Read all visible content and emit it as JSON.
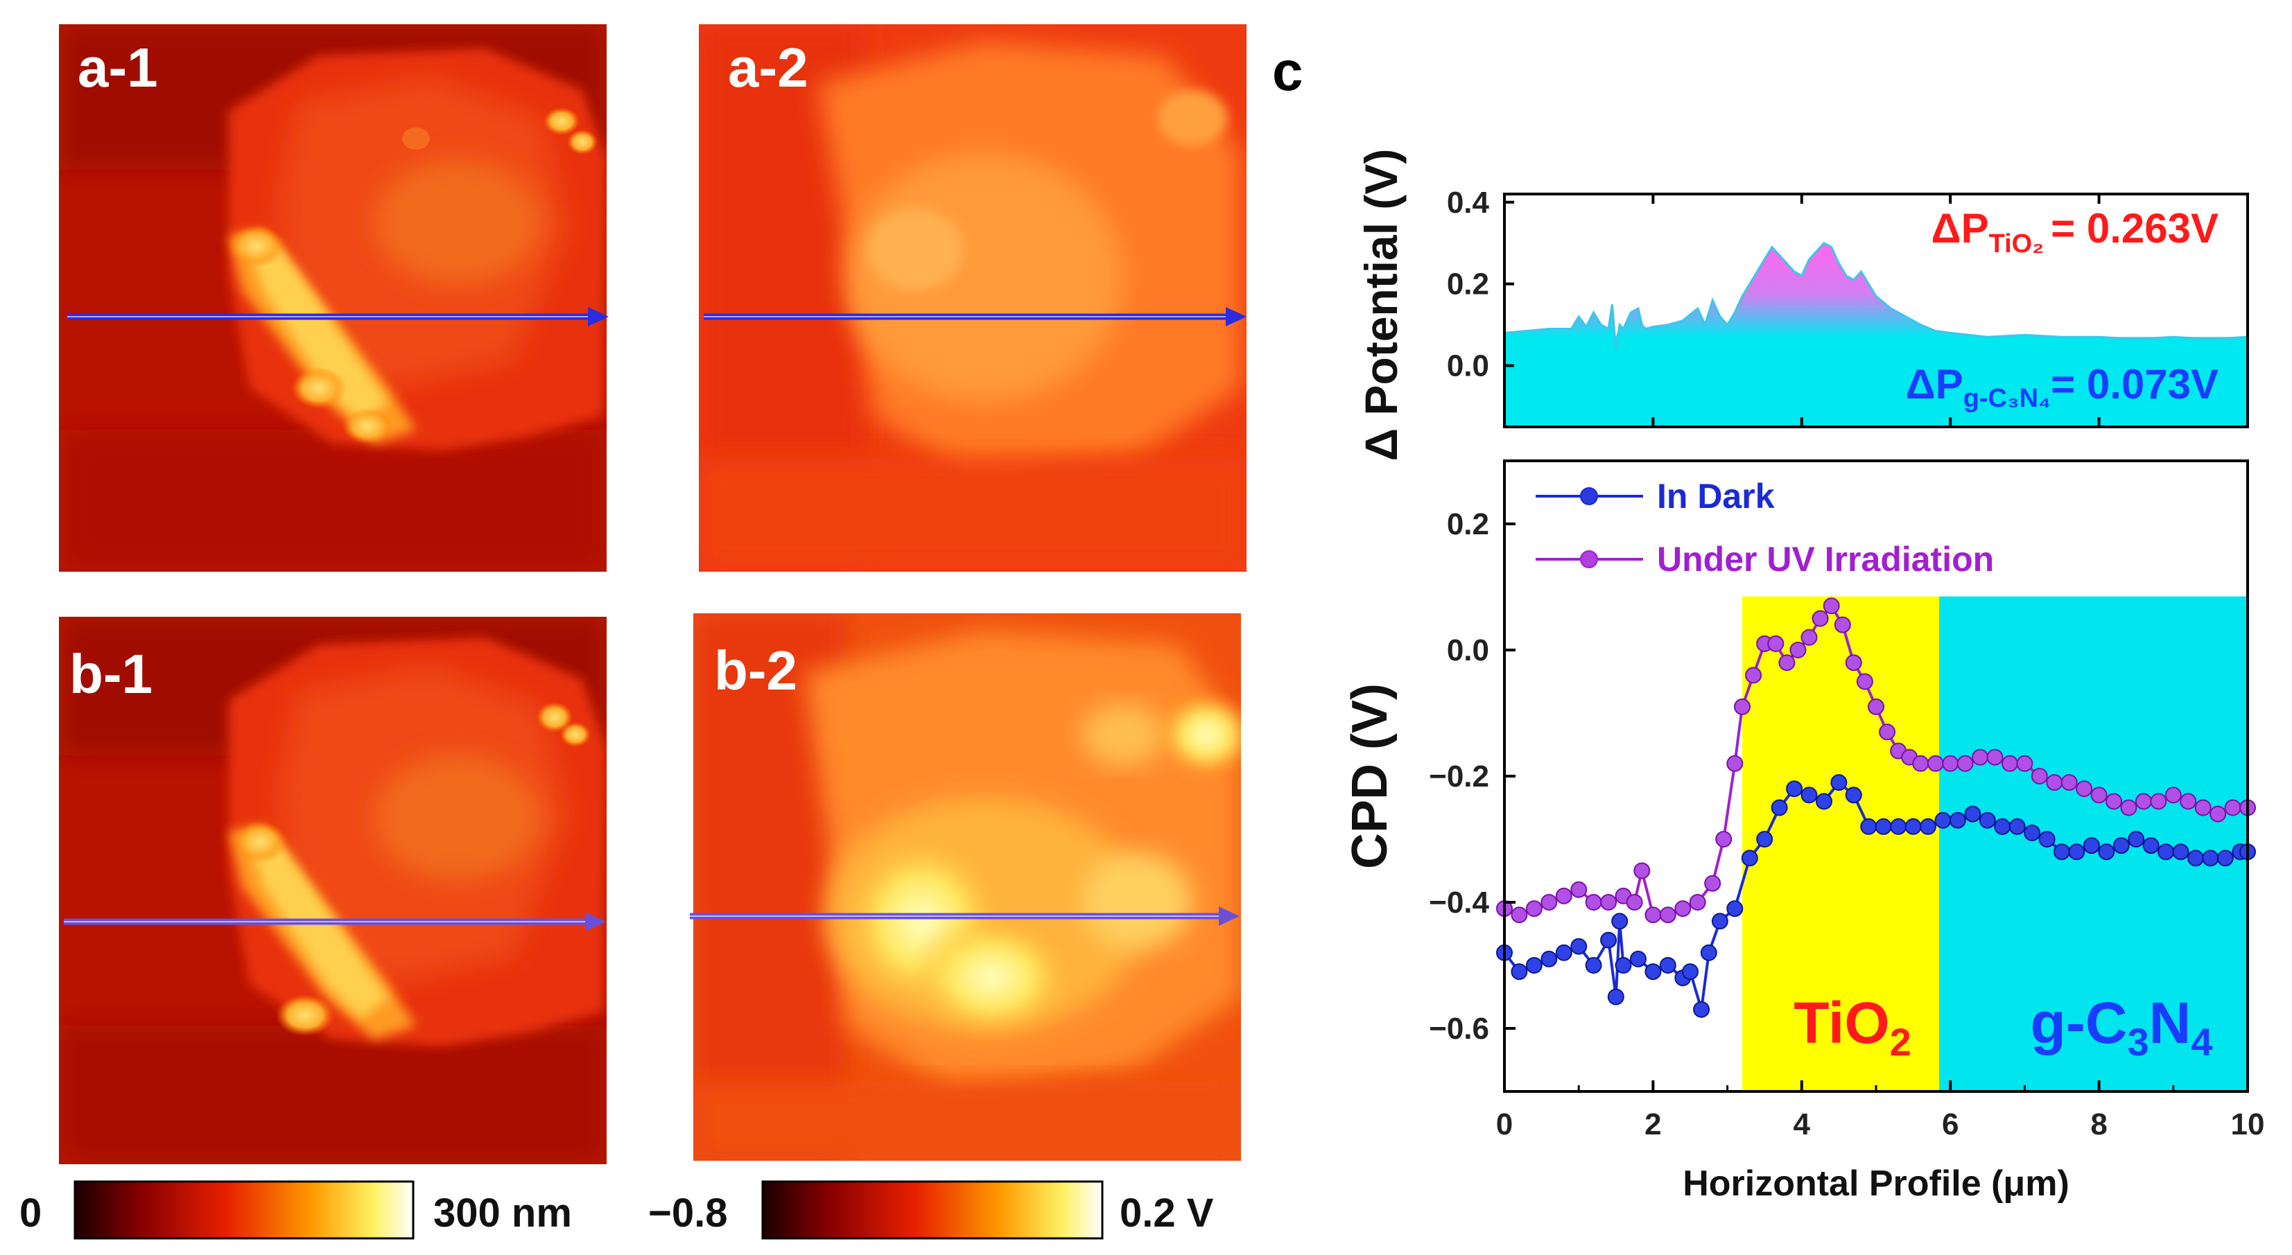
{
  "panels": {
    "a1": "a-1",
    "a2": "a-2",
    "b1": "b-1",
    "b2": "b-2",
    "c": "c"
  },
  "colorbars": {
    "height": {
      "min_label": "0",
      "max_label": "300 nm"
    },
    "potential": {
      "min_label": "−0.8",
      "max_label": "0.2 V"
    }
  },
  "chart_data": [
    {
      "type": "area",
      "title": "",
      "xlabel": "",
      "ylabel": "Δ Potential (V)",
      "xlim": [
        0,
        10
      ],
      "ylim": [
        -0.15,
        0.42
      ],
      "yticks": [
        "0.4",
        "0.2",
        "0.0"
      ],
      "annotations": {
        "tio2": {
          "prefix": "ΔP",
          "sub": "TiO₂",
          "value": "= 0.263V"
        },
        "gcn": {
          "prefix": "ΔP",
          "sub": "g-C₃N₄",
          "value": "= 0.073V"
        }
      },
      "x": [
        0,
        0.3,
        0.6,
        0.9,
        1.0,
        1.1,
        1.2,
        1.3,
        1.4,
        1.45,
        1.5,
        1.55,
        1.6,
        1.7,
        1.8,
        1.85,
        1.9,
        2.0,
        2.2,
        2.4,
        2.6,
        2.7,
        2.8,
        2.9,
        3.0,
        3.1,
        3.2,
        3.3,
        3.4,
        3.5,
        3.6,
        3.7,
        3.8,
        3.9,
        4.0,
        4.1,
        4.2,
        4.3,
        4.4,
        4.5,
        4.6,
        4.7,
        4.8,
        4.9,
        5.0,
        5.2,
        5.4,
        5.6,
        5.8,
        6.0,
        6.5,
        7.0,
        7.5,
        8.0,
        8.5,
        9.0,
        9.5,
        10.0
      ],
      "values": [
        0.08,
        0.085,
        0.09,
        0.09,
        0.12,
        0.095,
        0.13,
        0.1,
        0.09,
        0.15,
        0.04,
        0.1,
        0.09,
        0.13,
        0.14,
        0.1,
        0.09,
        0.095,
        0.1,
        0.11,
        0.14,
        0.1,
        0.16,
        0.12,
        0.1,
        0.13,
        0.17,
        0.2,
        0.23,
        0.26,
        0.29,
        0.27,
        0.25,
        0.23,
        0.22,
        0.26,
        0.28,
        0.3,
        0.29,
        0.25,
        0.22,
        0.21,
        0.23,
        0.2,
        0.17,
        0.14,
        0.12,
        0.1,
        0.085,
        0.08,
        0.07,
        0.075,
        0.07,
        0.07,
        0.065,
        0.07,
        0.065,
        0.07
      ]
    },
    {
      "type": "line",
      "title": "",
      "xlabel": "Horizontal Profile (μm)",
      "ylabel": "CPD (V)",
      "xlim": [
        0,
        10
      ],
      "ylim": [
        -0.7,
        0.3
      ],
      "xticks": [
        "0",
        "2",
        "4",
        "6",
        "8",
        "10"
      ],
      "yticks": [
        "0.2",
        "0.0",
        "−0.2",
        "−0.4",
        "−0.6"
      ],
      "regions": [
        {
          "name": "TiO2",
          "label_main": "TiO",
          "label_sub": "2",
          "x_from": 3.2,
          "x_to": 5.85,
          "color": "#ffff00",
          "label_color": "#ff1a1a"
        },
        {
          "name": "g-C3N4",
          "label_main": "g-C",
          "label_sub1": "3",
          "label_mid": "N",
          "label_sub2": "4",
          "x_from": 5.85,
          "x_to": 10,
          "color": "#00e5ee",
          "label_color": "#1a3cff"
        }
      ],
      "series": [
        {
          "name": "In Dark",
          "color": "#1a2ad6",
          "x": [
            0,
            0.2,
            0.4,
            0.6,
            0.8,
            1.0,
            1.2,
            1.4,
            1.5,
            1.55,
            1.6,
            1.8,
            2.0,
            2.2,
            2.4,
            2.5,
            2.65,
            2.75,
            2.9,
            3.1,
            3.3,
            3.5,
            3.7,
            3.9,
            4.1,
            4.3,
            4.5,
            4.7,
            4.9,
            5.1,
            5.3,
            5.5,
            5.7,
            5.9,
            6.1,
            6.3,
            6.5,
            6.7,
            6.9,
            7.1,
            7.3,
            7.5,
            7.7,
            7.9,
            8.1,
            8.3,
            8.5,
            8.7,
            8.9,
            9.1,
            9.3,
            9.5,
            9.7,
            9.9,
            10.0
          ],
          "values": [
            -0.48,
            -0.51,
            -0.5,
            -0.49,
            -0.48,
            -0.47,
            -0.5,
            -0.46,
            -0.55,
            -0.43,
            -0.5,
            -0.49,
            -0.51,
            -0.5,
            -0.52,
            -0.51,
            -0.57,
            -0.48,
            -0.43,
            -0.41,
            -0.33,
            -0.3,
            -0.25,
            -0.22,
            -0.23,
            -0.24,
            -0.21,
            -0.23,
            -0.28,
            -0.28,
            -0.28,
            -0.28,
            -0.28,
            -0.27,
            -0.27,
            -0.26,
            -0.27,
            -0.28,
            -0.28,
            -0.29,
            -0.3,
            -0.32,
            -0.32,
            -0.31,
            -0.32,
            -0.31,
            -0.3,
            -0.31,
            -0.32,
            -0.32,
            -0.33,
            -0.33,
            -0.33,
            -0.32,
            -0.32
          ]
        },
        {
          "name": "Under UV Irradiation",
          "color": "#a020d0",
          "x": [
            0,
            0.2,
            0.4,
            0.6,
            0.8,
            1.0,
            1.2,
            1.4,
            1.6,
            1.75,
            1.85,
            2.0,
            2.2,
            2.4,
            2.6,
            2.8,
            2.95,
            3.1,
            3.2,
            3.35,
            3.5,
            3.65,
            3.8,
            3.95,
            4.1,
            4.25,
            4.4,
            4.55,
            4.7,
            4.85,
            5.0,
            5.15,
            5.3,
            5.45,
            5.6,
            5.8,
            6.0,
            6.2,
            6.4,
            6.6,
            6.8,
            7.0,
            7.2,
            7.4,
            7.6,
            7.8,
            8.0,
            8.2,
            8.4,
            8.6,
            8.8,
            9.0,
            9.2,
            9.4,
            9.6,
            9.8,
            10.0
          ],
          "values": [
            -0.41,
            -0.42,
            -0.41,
            -0.4,
            -0.39,
            -0.38,
            -0.4,
            -0.4,
            -0.39,
            -0.4,
            -0.35,
            -0.42,
            -0.42,
            -0.41,
            -0.4,
            -0.37,
            -0.3,
            -0.18,
            -0.09,
            -0.04,
            0.01,
            0.01,
            -0.02,
            0.0,
            0.02,
            0.05,
            0.07,
            0.04,
            -0.02,
            -0.05,
            -0.09,
            -0.13,
            -0.16,
            -0.17,
            -0.18,
            -0.18,
            -0.18,
            -0.18,
            -0.17,
            -0.17,
            -0.18,
            -0.18,
            -0.2,
            -0.21,
            -0.21,
            -0.22,
            -0.23,
            -0.24,
            -0.25,
            -0.24,
            -0.24,
            -0.23,
            -0.24,
            -0.25,
            -0.26,
            -0.25,
            -0.25
          ]
        }
      ]
    }
  ]
}
